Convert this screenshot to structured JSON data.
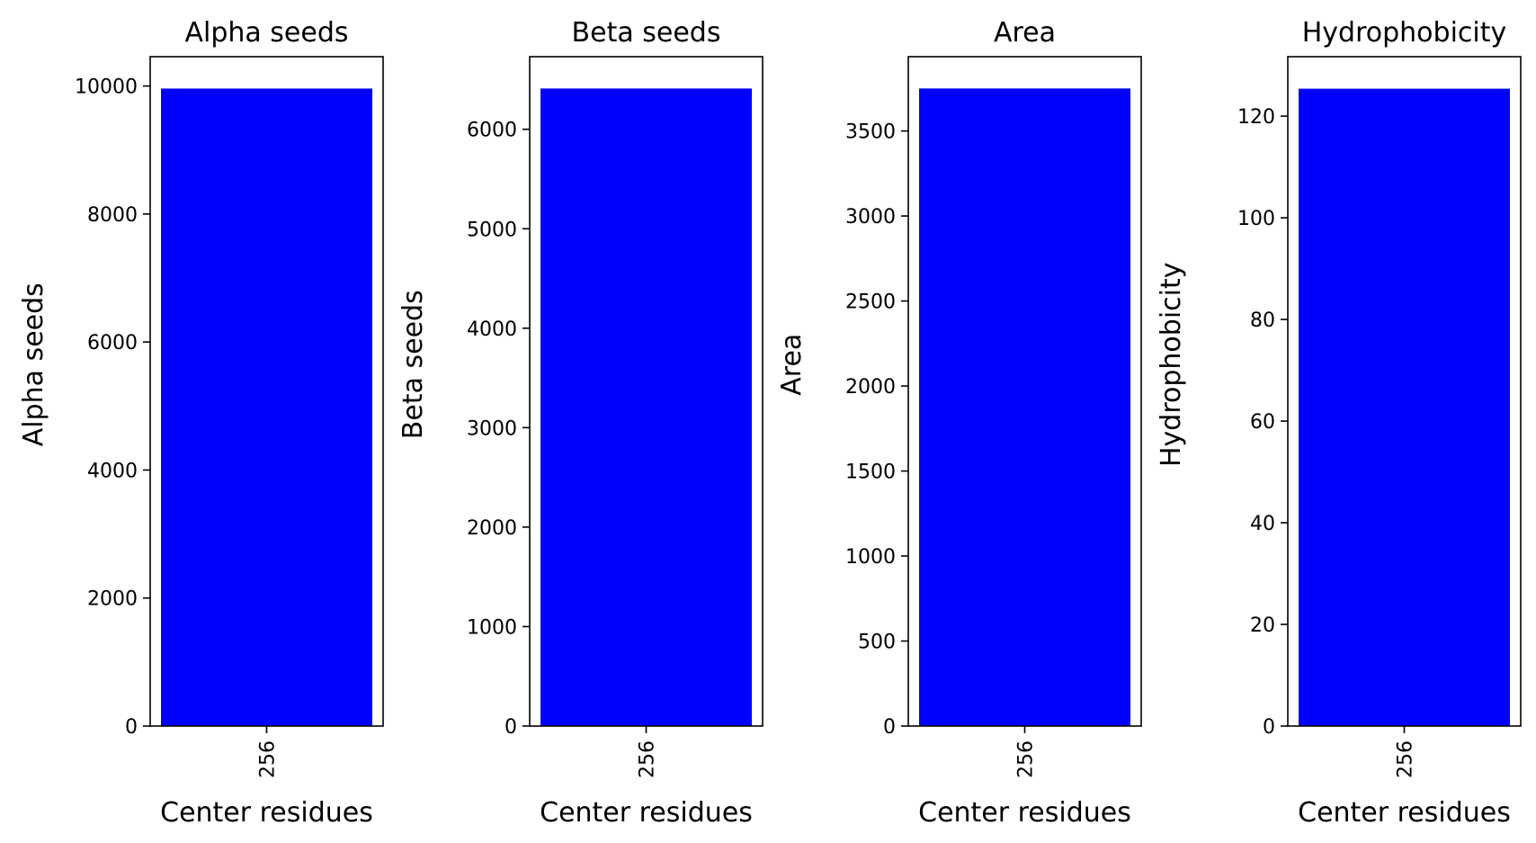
{
  "chart_data": [
    {
      "type": "bar",
      "title": "Alpha seeds",
      "xlabel": "Center residues",
      "ylabel": "Alpha seeds",
      "categories": [
        "256"
      ],
      "values": [
        9960
      ],
      "ylim": [
        0,
        10458
      ],
      "yticks": [
        0,
        2000,
        4000,
        6000,
        8000,
        10000
      ],
      "bar_color": "#0000ff",
      "grid": false
    },
    {
      "type": "bar",
      "title": "Beta seeds",
      "xlabel": "Center residues",
      "ylabel": "Beta seeds",
      "categories": [
        "256"
      ],
      "values": [
        6410
      ],
      "ylim": [
        0,
        6730
      ],
      "yticks": [
        0,
        1000,
        2000,
        3000,
        4000,
        5000,
        6000
      ],
      "bar_color": "#0000ff",
      "grid": false
    },
    {
      "type": "bar",
      "title": "Area",
      "xlabel": "Center residues",
      "ylabel": "Area",
      "categories": [
        "256"
      ],
      "values": [
        3750
      ],
      "ylim": [
        0,
        3937
      ],
      "yticks": [
        0,
        500,
        1000,
        1500,
        2000,
        2500,
        3000,
        3500
      ],
      "bar_color": "#0000ff",
      "grid": false
    },
    {
      "type": "bar",
      "title": "Hydrophobicity",
      "xlabel": "Center residues",
      "ylabel": "Hydrophobicity",
      "categories": [
        "256"
      ],
      "values": [
        125.4
      ],
      "ylim": [
        0,
        131.7
      ],
      "yticks": [
        0,
        20,
        40,
        60,
        80,
        100,
        120
      ],
      "bar_color": "#0000ff",
      "grid": false
    }
  ]
}
